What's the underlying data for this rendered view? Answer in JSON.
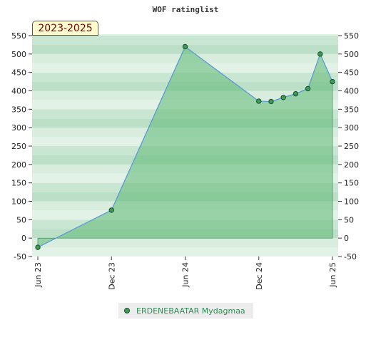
{
  "chart_data": {
    "type": "area",
    "title": "WOF ratinglist",
    "period_label": "2023-2025",
    "x_ticks": [
      "Jun 23",
      "Dec 23",
      "Jun 24",
      "Dec 24",
      "Jun 25"
    ],
    "y_ticks": [
      "550",
      "500",
      "450",
      "400",
      "350",
      "300",
      "250",
      "200",
      "150",
      "100",
      "50",
      "0",
      "-50"
    ],
    "ylim": [
      -50,
      550
    ],
    "xlim": [
      "2023-06",
      "2025-06"
    ],
    "grid": true,
    "legend_position": "bottom-center",
    "series": [
      {
        "name": "ERDENEBAATAR Mydagmaa",
        "x": [
          "2023-06",
          "2023-12",
          "2024-06",
          "2024-12",
          "2025-01",
          "2025-02",
          "2025-03",
          "2025-04",
          "2025-05",
          "2025-06"
        ],
        "values": [
          -25,
          76,
          520,
          372,
          371,
          382,
          392,
          406,
          500,
          425
        ]
      }
    ],
    "colors": {
      "line": "#5b9bd5",
      "area": "#5fb874",
      "marker": "#3a9a58",
      "marker_border": "#1d4f2a",
      "band_dark": "#b3dcbf",
      "band_light": "#f2f9f4"
    }
  }
}
